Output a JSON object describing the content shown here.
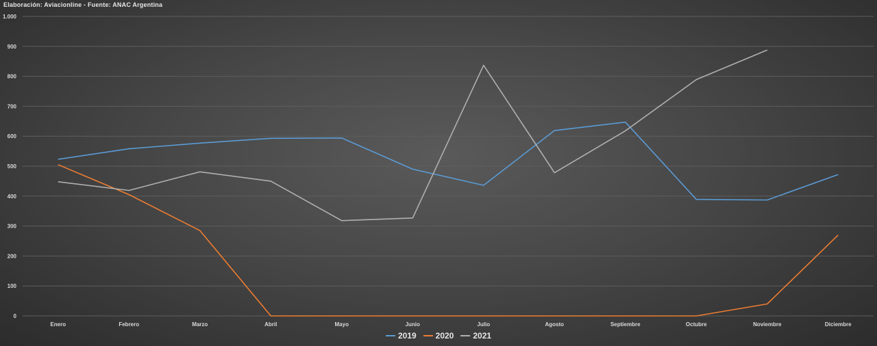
{
  "source_text": "Elaboración: Aviacionline - Fuente: ANAC Argentina",
  "chart_data": {
    "type": "line",
    "title": "",
    "xlabel": "",
    "ylabel": "",
    "categories": [
      "Enero",
      "Febrero",
      "Marzo",
      "Abril",
      "Mayo",
      "Junio",
      "Julio",
      "Agosto",
      "Septiembre",
      "Octubre",
      "Noviembre",
      "Diciembre"
    ],
    "ylim": [
      0,
      1000
    ],
    "y_ticks": [
      0,
      100,
      200,
      300,
      400,
      500,
      600,
      700,
      800,
      900,
      1000
    ],
    "y_tick_labels": [
      "0",
      "100",
      "200",
      "300",
      "400",
      "500",
      "600",
      "700",
      "800",
      "900",
      "1.000"
    ],
    "grid": true,
    "legend_position": "bottom",
    "series": [
      {
        "name": "2019",
        "color": "#5b9bd5",
        "values": [
          523,
          558,
          577,
          593,
          594,
          490,
          436,
          619,
          647,
          389,
          387,
          472
        ]
      },
      {
        "name": "2020",
        "color": "#ed7d31",
        "values": [
          505,
          405,
          285,
          0,
          0,
          0,
          0,
          0,
          0,
          0,
          40,
          270
        ]
      },
      {
        "name": "2021",
        "color": "#b0b0b0",
        "values": [
          448,
          419,
          481,
          450,
          318,
          327,
          837,
          478,
          618,
          789,
          888,
          null
        ]
      }
    ]
  }
}
